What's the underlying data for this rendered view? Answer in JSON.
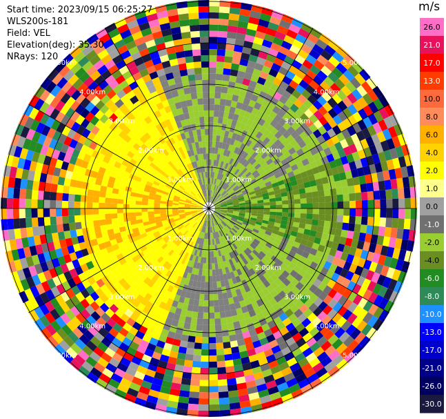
{
  "info": {
    "start_time": "Start time: 2023/09/15 06:25:27",
    "station": "WLS200s-181",
    "field": "Field: VEL",
    "elevation": "Elevation(deg): 35.30",
    "nrays": "NRays: 120"
  },
  "chart_data": {
    "type": "heatmap",
    "projection": "polar-ppi",
    "title": "",
    "field": "VEL",
    "units": "m/s",
    "n_rays": 120,
    "range_rings_km": [
      1.0,
      2.0,
      3.0,
      4.0,
      5.0
    ],
    "ring_labels": [
      "1.00km",
      "2.00km",
      "3.00km",
      "4.00km",
      "5.00km"
    ],
    "spokes_deg": [
      0,
      30,
      60,
      90,
      120,
      150,
      180,
      210,
      240,
      270,
      300,
      330
    ],
    "colorbar": {
      "unit_label": "m/s",
      "ticks": [
        "26.0",
        "21.0",
        "17.0",
        "13.0",
        "10.0",
        "8.0",
        "6.0",
        "4.0",
        "2.0",
        "1.0",
        "0.0",
        "-1.0",
        "-2.0",
        "-4.0",
        "-6.0",
        "-8.0",
        "-10.0",
        "-13.0",
        "-17.0",
        "-21.0",
        "-26.0",
        "-30.0"
      ],
      "colors": [
        "#ff6ec7",
        "#e8115b",
        "#ff0000",
        "#ff3c00",
        "#ff6a3d",
        "#ff8c5a",
        "#ffb000",
        "#ffd200",
        "#ffff00",
        "#ffff8c",
        "#a0a0a0",
        "#707070",
        "#9acd32",
        "#6b8e23",
        "#228b22",
        "#2e8b57",
        "#1e90ff",
        "#0000ff",
        "#0000cd",
        "#00008b",
        "#000060",
        "#1a1a40"
      ]
    },
    "pattern_summary": "Yellow/orange (positive) velocities to the west and north-west, grey near-zero band to the north and south, green (negative) velocities to the east; noisy multicolor speckle beyond roughly 3 km"
  }
}
